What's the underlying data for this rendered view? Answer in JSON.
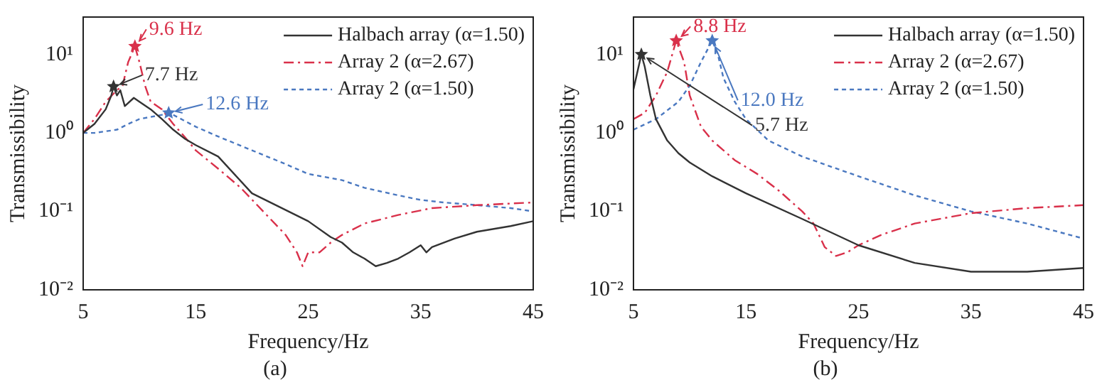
{
  "chart_data": [
    {
      "type": "line",
      "title": "(a)",
      "xlabel": "Frequency/Hz",
      "ylabel": "Transmissibility",
      "log": "y",
      "xlim": [
        5,
        45
      ],
      "xticks": [
        5,
        15,
        25,
        35,
        45
      ],
      "ylim": [
        0.01,
        30
      ],
      "yticks": [
        {
          "value": 0.01,
          "label": "10⁻²"
        },
        {
          "value": 0.1,
          "label": "10⁻¹"
        },
        {
          "value": 1,
          "label": "10⁰"
        },
        {
          "value": 10,
          "label": "10¹"
        }
      ],
      "legend": "top right",
      "grid": false,
      "series": [
        {
          "name": "Halbach array (α=1.50)",
          "color": "#333333",
          "line_style": "solid",
          "x": [
            5,
            6,
            7,
            7.5,
            7.7,
            8,
            8.3,
            8.7,
            9.5,
            10,
            11,
            12,
            13,
            14,
            15,
            17,
            20,
            25,
            27,
            28,
            29,
            30,
            31,
            32,
            33,
            34,
            35,
            35.5,
            36,
            38,
            40,
            43,
            45
          ],
          "values": [
            1.0,
            1.3,
            2.0,
            3.0,
            3.9,
            3.0,
            3.5,
            2.2,
            2.8,
            2.5,
            2.0,
            1.5,
            1.1,
            0.85,
            0.7,
            0.5,
            0.17,
            0.075,
            0.047,
            0.04,
            0.03,
            0.025,
            0.02,
            0.022,
            0.025,
            0.03,
            0.037,
            0.03,
            0.035,
            0.045,
            0.055,
            0.065,
            0.075
          ]
        },
        {
          "name": "Array 2 (α=2.67)",
          "color": "#d9304a",
          "line_style": "dashed",
          "x": [
            5,
            6,
            7,
            8,
            8.5,
            9,
            9.6,
            10,
            10.5,
            11,
            12,
            13,
            14,
            15,
            17,
            19,
            21,
            23,
            24,
            24.5,
            25,
            26,
            27,
            28,
            30,
            33,
            36,
            40,
            45
          ],
          "values": [
            1.0,
            1.5,
            2.5,
            3.5,
            4,
            8,
            12.7,
            8,
            4,
            2.5,
            2.0,
            1.3,
            0.9,
            0.6,
            0.35,
            0.2,
            0.1,
            0.05,
            0.03,
            0.02,
            0.03,
            0.03,
            0.04,
            0.05,
            0.07,
            0.09,
            0.11,
            0.12,
            0.13
          ]
        },
        {
          "name": "Array 2 (α=1.50)",
          "color": "#4a78c0",
          "line_style": "dotted",
          "x": [
            5,
            6,
            8,
            9,
            10,
            11,
            12,
            12.6,
            13,
            15,
            17,
            20,
            23,
            25,
            28,
            30,
            33,
            35,
            37,
            40,
            43,
            45
          ],
          "values": [
            1.0,
            1.0,
            1.1,
            1.3,
            1.5,
            1.6,
            1.7,
            1.8,
            1.7,
            1.2,
            0.9,
            0.6,
            0.4,
            0.3,
            0.25,
            0.2,
            0.16,
            0.14,
            0.13,
            0.12,
            0.11,
            0.1
          ]
        }
      ],
      "annotations": [
        {
          "text": "7.7 Hz",
          "x": 7.7,
          "y": 3.9
        },
        {
          "text": "9.6 Hz",
          "x": 9.6,
          "y": 12.7
        },
        {
          "text": "12.6 Hz",
          "x": 12.6,
          "y": 1.8
        }
      ]
    },
    {
      "type": "line",
      "title": "(b)",
      "xlabel": "Frequency/Hz",
      "ylabel": "Transmissibility",
      "log": "y",
      "xlim": [
        5,
        45
      ],
      "xticks": [
        5,
        15,
        25,
        35,
        45
      ],
      "ylim": [
        0.01,
        30
      ],
      "yticks": [
        {
          "value": 0.01,
          "label": "10⁻²"
        },
        {
          "value": 0.1,
          "label": "10⁻¹"
        },
        {
          "value": 1,
          "label": "10⁰"
        },
        {
          "value": 10,
          "label": "10¹"
        }
      ],
      "legend": "top right",
      "grid": false,
      "series": [
        {
          "name": "Halbach array (α=1.50)",
          "color": "#333333",
          "line_style": "solid",
          "x": [
            5,
            5.7,
            6,
            6.5,
            7,
            8,
            9,
            10,
            12,
            15,
            20,
            25,
            30,
            35,
            40,
            45
          ],
          "values": [
            3.6,
            10,
            7,
            3,
            1.5,
            0.8,
            0.55,
            0.42,
            0.28,
            0.17,
            0.08,
            0.037,
            0.022,
            0.017,
            0.017,
            0.019
          ]
        },
        {
          "name": "Array 2 (α=2.67)",
          "color": "#d9304a",
          "line_style": "dashed",
          "x": [
            5,
            6,
            7,
            8,
            8.8,
            9.5,
            10,
            11,
            12,
            14,
            16,
            18,
            20,
            21,
            22,
            23,
            24,
            25,
            27,
            30,
            35,
            40,
            45
          ],
          "values": [
            1.5,
            1.8,
            3,
            6,
            15,
            8,
            3,
            1.2,
            0.8,
            0.45,
            0.3,
            0.18,
            0.1,
            0.07,
            0.035,
            0.027,
            0.03,
            0.037,
            0.05,
            0.07,
            0.095,
            0.11,
            0.12
          ]
        },
        {
          "name": "Array 2 (α=1.50)",
          "color": "#4a78c0",
          "line_style": "dotted",
          "x": [
            5,
            7,
            9,
            10,
            11,
            12,
            12.5,
            13,
            14,
            15,
            17,
            20,
            25,
            30,
            35,
            40,
            45
          ],
          "values": [
            1.1,
            1.5,
            2.5,
            4,
            8,
            15,
            10,
            5,
            2.5,
            1.5,
            0.8,
            0.5,
            0.28,
            0.16,
            0.1,
            0.07,
            0.045
          ]
        }
      ],
      "annotations": [
        {
          "text": "5.7 Hz",
          "x": 5.7,
          "y": 10
        },
        {
          "text": "8.8 Hz",
          "x": 8.8,
          "y": 15
        },
        {
          "text": "12.0 Hz",
          "x": 12.0,
          "y": 15
        }
      ]
    }
  ]
}
